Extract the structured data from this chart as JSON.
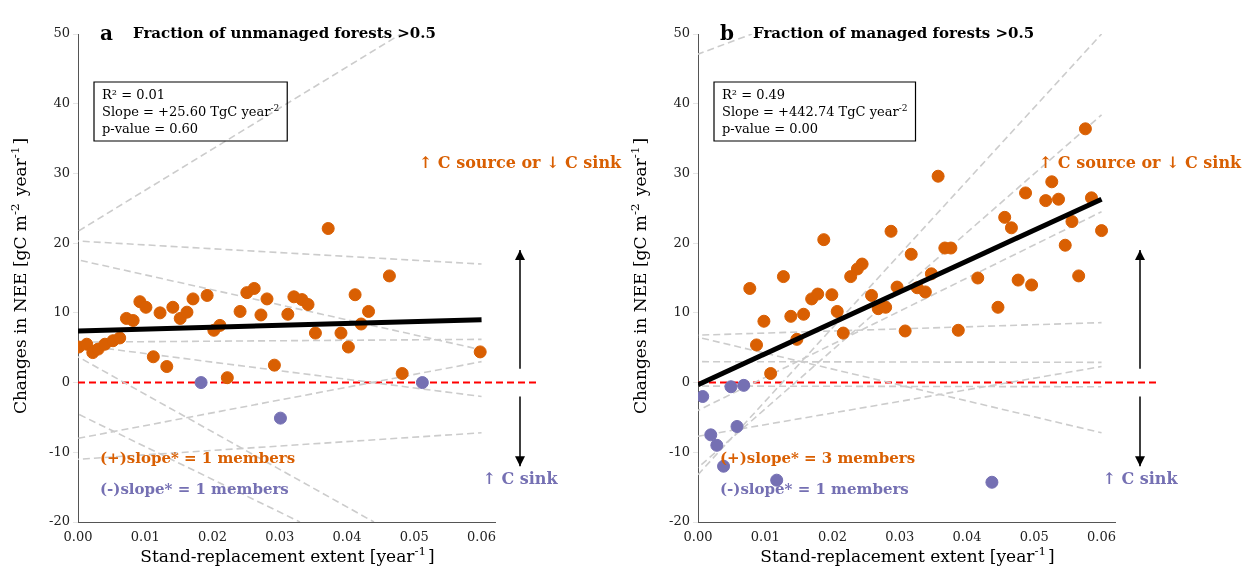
{
  "chart_data": [
    {
      "type": "scatter",
      "title": "Fraction of unmanaged forests >0.5",
      "xlabel": "Stand-replacement extent [year$^{-1}$]",
      "ylabel": "Changes in NEE [gC m$^{-2}$ year$^{-1}$]",
      "annotations": [
        "a",
        "R² = 0.01",
        "Slope = +25.60 TgC year$^{-2}$",
        "p-value = 0.60",
        "↑ C source or ↓ C sink",
        "↑ C sink",
        "(+)slope* = 1 members",
        "(-)slope* = 1 members"
      ],
      "xlim": [
        0,
        0.062
      ],
      "xticks": [
        {
          "value": 0,
          "label": "0.00"
        },
        {
          "value": 0.01,
          "label": "0.01"
        },
        {
          "value": 0.02,
          "label": "0.02"
        },
        {
          "value": 0.03,
          "label": "0.03"
        },
        {
          "value": 0.04,
          "label": "0.04"
        },
        {
          "value": 0.05,
          "label": "0.05"
        },
        {
          "value": 0.06,
          "label": "0.06"
        }
      ],
      "ylim": [
        -20,
        50
      ],
      "yticks": [
        -20,
        -10,
        0,
        10,
        20,
        30,
        40,
        50
      ],
      "grid": false,
      "ref_lines": [
        {
          "axis": "y",
          "value": 0,
          "color": "#ff0000",
          "line_style": "dashed"
        }
      ],
      "series": [
        {
          "type": "line",
          "color": "#cccccc",
          "line_style": "dashed",
          "x": [
            0,
            0.048
          ],
          "values": [
            21.7,
            50
          ]
        },
        {
          "type": "line",
          "color": "#cccccc",
          "line_style": "dashed",
          "x": [
            0,
            0.06
          ],
          "values": [
            20.3,
            17.0
          ]
        },
        {
          "type": "line",
          "color": "#cccccc",
          "line_style": "dashed",
          "x": [
            0,
            0.06
          ],
          "values": [
            17.6,
            4.7
          ]
        },
        {
          "type": "line",
          "color": "#cccccc",
          "line_style": "dashed",
          "x": [
            0,
            0.06
          ],
          "values": [
            5.8,
            6.2
          ]
        },
        {
          "type": "line",
          "color": "#cccccc",
          "line_style": "dashed",
          "x": [
            0,
            0.06
          ],
          "values": [
            5.4,
            -2.0
          ]
        },
        {
          "type": "line",
          "color": "#cccccc",
          "line_style": "dashed",
          "x": [
            0,
            0.044
          ],
          "values": [
            3.7,
            -20
          ]
        },
        {
          "type": "line",
          "color": "#cccccc",
          "line_style": "dashed",
          "x": [
            0,
            0.033
          ],
          "values": [
            -4.5,
            -20
          ]
        },
        {
          "type": "line",
          "color": "#cccccc",
          "line_style": "dashed",
          "x": [
            0,
            0.06
          ],
          "values": [
            -8.0,
            3.0
          ]
        },
        {
          "type": "line",
          "color": "#cccccc",
          "line_style": "dashed",
          "x": [
            0,
            0.06
          ],
          "values": [
            -11.0,
            -7.2
          ]
        },
        {
          "type": "scatter",
          "marker": "circle",
          "color": "#d95f02",
          "x": [
            0.0001,
            0.0013,
            0.0022,
            0.003,
            0.004,
            0.0052,
            0.0062,
            0.0072,
            0.0082,
            0.0092,
            0.0101,
            0.0112,
            0.0122,
            0.0132,
            0.0141,
            0.0152,
            0.0162,
            0.0171,
            0.0192,
            0.0202,
            0.0211,
            0.0222,
            0.0241,
            0.0251,
            0.0262,
            0.0272,
            0.0281,
            0.0292,
            0.0312,
            0.0321,
            0.0333,
            0.0342,
            0.0353,
            0.0372,
            0.0391,
            0.0402,
            0.0412,
            0.0421,
            0.0432,
            0.0463,
            0.0482,
            0.0598
          ],
          "values": [
            5.1,
            5.5,
            4.3,
            4.8,
            5.5,
            6.0,
            6.4,
            9.2,
            8.9,
            11.6,
            10.8,
            3.7,
            10.0,
            2.3,
            10.8,
            9.2,
            10.1,
            12.0,
            12.5,
            7.5,
            8.2,
            0.7,
            10.2,
            12.9,
            13.5,
            9.7,
            12.0,
            2.5,
            9.8,
            12.3,
            11.9,
            11.2,
            7.1,
            22.1,
            7.1,
            5.1,
            12.6,
            8.4,
            10.2,
            15.3,
            1.3,
            4.4
          ]
        },
        {
          "type": "scatter",
          "marker": "circle",
          "color": "#7570b3",
          "x": [
            0.0183,
            0.0301,
            0.0512
          ],
          "values": [
            0,
            -5.1,
            0
          ]
        },
        {
          "type": "line",
          "color": "#000000",
          "line_style": "solid",
          "x": [
            0,
            0.06
          ],
          "values": [
            7.4,
            9.0
          ]
        }
      ]
    },
    {
      "type": "scatter",
      "title": "Fraction of managed forests >0.5",
      "xlabel": "Stand-replacement extent [year$^{-1}$]",
      "ylabel": "Changes in NEE [gC m$^{-2}$ year$^{-1}$]",
      "annotations": [
        "b",
        "R² = 0.49",
        "Slope = +442.74 TgC year$^{-2}$",
        "p-value = 0.00",
        "↑ C source or ↓ C sink",
        "↑ C sink",
        "(+)slope* = 3 members",
        "(-)slope* = 1 members"
      ],
      "xlim": [
        0,
        0.062
      ],
      "xticks": [
        {
          "value": 0,
          "label": "0.00"
        },
        {
          "value": 0.01,
          "label": "0.01"
        },
        {
          "value": 0.02,
          "label": "0.02"
        },
        {
          "value": 0.03,
          "label": "0.03"
        },
        {
          "value": 0.04,
          "label": "0.04"
        },
        {
          "value": 0.05,
          "label": "0.05"
        },
        {
          "value": 0.06,
          "label": "0.06"
        }
      ],
      "ylim": [
        -20,
        50
      ],
      "yticks": [
        -20,
        -10,
        0,
        10,
        20,
        30,
        40,
        50
      ],
      "grid": false,
      "ref_lines": [
        {
          "axis": "y",
          "value": 0,
          "color": "#ff0000",
          "line_style": "dashed"
        }
      ],
      "series": [
        {
          "type": "line",
          "color": "#cccccc",
          "line_style": "dashed",
          "x": [
            0,
            0.008
          ],
          "values": [
            47.1,
            50
          ]
        },
        {
          "type": "line",
          "color": "#cccccc",
          "line_style": "dashed",
          "x": [
            0,
            0.06
          ],
          "values": [
            -13.2,
            50
          ]
        },
        {
          "type": "line",
          "color": "#cccccc",
          "line_style": "dashed",
          "x": [
            0,
            0.06
          ],
          "values": [
            -12.2,
            38.4
          ]
        },
        {
          "type": "line",
          "color": "#cccccc",
          "line_style": "dashed",
          "x": [
            0,
            0.06
          ],
          "values": [
            -4.0,
            24.5
          ]
        },
        {
          "type": "line",
          "color": "#cccccc",
          "line_style": "dashed",
          "x": [
            0,
            0.06
          ],
          "values": [
            6.8,
            8.6
          ]
        },
        {
          "type": "line",
          "color": "#cccccc",
          "line_style": "dashed",
          "x": [
            0,
            0.06
          ],
          "values": [
            6.5,
            -7.2
          ]
        },
        {
          "type": "line",
          "color": "#cccccc",
          "line_style": "dashed",
          "x": [
            0,
            0.06
          ],
          "values": [
            3.0,
            2.9
          ]
        },
        {
          "type": "line",
          "color": "#cccccc",
          "line_style": "dashed",
          "x": [
            0,
            0.06
          ],
          "values": [
            -0.5,
            -0.6
          ]
        },
        {
          "type": "line",
          "color": "#cccccc",
          "line_style": "dashed",
          "x": [
            0,
            0.06
          ],
          "values": [
            -7.7,
            2.3
          ]
        },
        {
          "type": "scatter",
          "marker": "circle",
          "color": "#d95f02",
          "x": [
            0.0576,
            0.0357,
            0.0526,
            0.0487,
            0.0517,
            0.0536,
            0.0585,
            0.0456,
            0.0466,
            0.0556,
            0.06,
            0.0546,
            0.0287,
            0.0187,
            0.0317,
            0.0367,
            0.0376,
            0.0244,
            0.0237,
            0.0127,
            0.0227,
            0.0347,
            0.0416,
            0.0476,
            0.0566,
            0.0077,
            0.0169,
            0.0178,
            0.0199,
            0.0258,
            0.0296,
            0.0326,
            0.0338,
            0.0496,
            0.0098,
            0.0138,
            0.0157,
            0.0207,
            0.0147,
            0.0216,
            0.0268,
            0.0279,
            0.0308,
            0.0387,
            0.0446,
            0.0087,
            0.0108
          ],
          "values": [
            36.4,
            29.6,
            28.8,
            27.2,
            26.1,
            26.3,
            26.5,
            23.7,
            22.2,
            23.1,
            21.8,
            19.7,
            21.7,
            20.5,
            18.4,
            19.3,
            19.3,
            17.0,
            16.3,
            15.2,
            15.2,
            15.6,
            15.0,
            14.7,
            15.3,
            13.5,
            12.0,
            12.7,
            12.6,
            12.5,
            13.7,
            13.6,
            13.0,
            14.0,
            8.8,
            9.5,
            9.8,
            10.2,
            6.2,
            7.1,
            10.6,
            10.8,
            7.4,
            7.5,
            10.8,
            5.4,
            1.3
          ]
        },
        {
          "type": "scatter",
          "marker": "circle",
          "color": "#7570b3",
          "x": [
            0.0007,
            0.0049,
            0.0068,
            0.0019,
            0.0028,
            0.0058,
            0.0038,
            0.0117,
            0.0437
          ],
          "values": [
            -2.0,
            -0.6,
            -0.4,
            -7.5,
            -9.0,
            -6.3,
            -12.0,
            -14.0,
            -14.3
          ]
        },
        {
          "type": "line",
          "color": "#000000",
          "line_style": "solid",
          "x": [
            0,
            0.06
          ],
          "values": [
            -0.3,
            26.3
          ]
        }
      ]
    }
  ]
}
